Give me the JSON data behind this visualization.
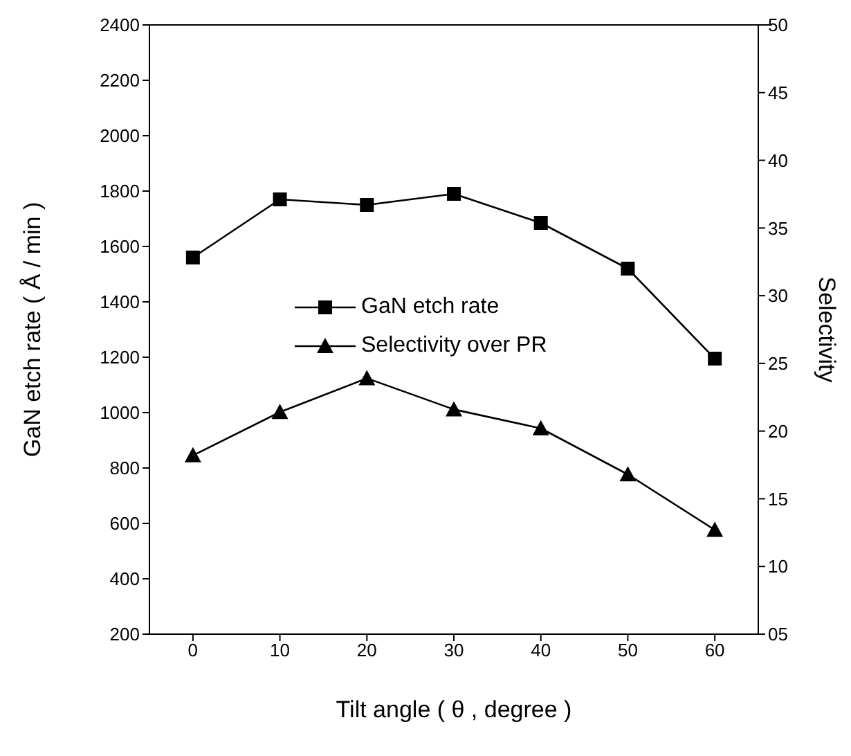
{
  "chart_data": {
    "type": "line",
    "xlabel": "Tilt angle ( θ , degree )",
    "ylabel": "GaN etch rate ( Å / min )",
    "y2label": "Selectivity",
    "x": [
      0,
      10,
      20,
      30,
      40,
      50,
      60
    ],
    "series": [
      {
        "name": "GaN etch rate",
        "color": "#000000",
        "marker": "square",
        "values": [
          1560,
          1770,
          1750,
          1790,
          1685,
          1520,
          1195
        ]
      },
      {
        "name": "Selectivity over PR",
        "color": "#000000",
        "marker": "triangle",
        "axis": "y2",
        "values": [
          18.2,
          21.4,
          23.9,
          21.6,
          20.2,
          16.8,
          12.7
        ]
      }
    ],
    "xlim": [
      -5,
      65
    ],
    "xticks": [
      0,
      10,
      20,
      30,
      40,
      50,
      60
    ],
    "ylim": [
      200,
      2400
    ],
    "yticks": [
      200,
      400,
      600,
      800,
      1000,
      1200,
      1400,
      1600,
      1800,
      2000,
      2200,
      2400
    ],
    "y2lim": [
      5,
      50
    ],
    "y2ticks": [
      {
        "value": 5,
        "label": "05"
      },
      10,
      15,
      20,
      25,
      30,
      35,
      40,
      45,
      50
    ],
    "grid": false,
    "legend": "center",
    "line_style": "solid"
  }
}
